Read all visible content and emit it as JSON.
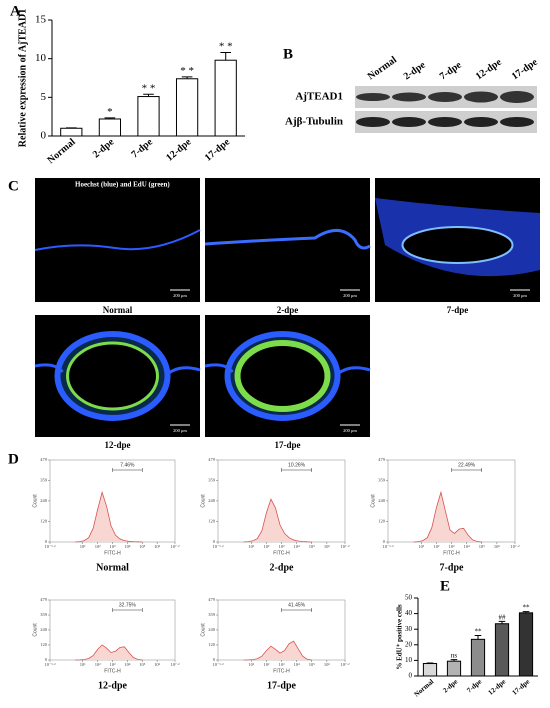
{
  "panel_labels": [
    "A",
    "B",
    "C",
    "D",
    "E"
  ],
  "blot": {
    "lanes": [
      "Normal",
      "2-dpe",
      "7-dpe",
      "12-dpe",
      "17-dpe"
    ],
    "rows": [
      "AjTEAD1",
      "Ajβ-Tubulin"
    ]
  },
  "micrographs": {
    "caption": "Hoechst (blue) and EdU (green)",
    "scale": "200 μm",
    "labels": [
      "Normal",
      "2-dpe",
      "7-dpe",
      "12-dpe",
      "17-dpe"
    ]
  },
  "chart_data": [
    {
      "type": "bar",
      "ylabel": "Relative expression of AjTEAD1",
      "categories": [
        "Normal",
        "2-dpe",
        "7-dpe",
        "12-dpe",
        "17-dpe"
      ],
      "values": [
        1,
        2.2,
        5.1,
        7.4,
        9.8
      ],
      "errors": [
        0.05,
        0.15,
        0.3,
        0.25,
        1.0
      ],
      "annotations": [
        null,
        "*",
        "* *",
        "* *",
        "* *"
      ],
      "color": "#ffffff",
      "ylim": [
        0,
        15
      ],
      "yticks": [
        0,
        5,
        10,
        15
      ]
    },
    {
      "type": "area",
      "title": "Normal",
      "xlabel": "FITC-H",
      "ylabel": "Count",
      "log_x": true,
      "x": [
        3.16,
        6.31,
        12.6,
        25.1,
        50.1,
        100,
        200,
        398,
        794,
        1585,
        3162,
        6310,
        12589,
        25119,
        50119,
        100000
      ],
      "values": [
        0,
        2,
        8,
        25,
        80,
        190,
        290,
        210,
        95,
        40,
        18,
        8,
        4,
        2,
        1,
        0
      ],
      "gate": [
        1000,
        100000
      ],
      "gate_label": "7.46%",
      "color": "#d9534f",
      "xlim": [
        0.0631,
        15848932
      ],
      "ylim": [
        0,
        479
      ],
      "xticks": [
        {
          "value": 0.0631,
          "label": "10⁻¹·²"
        },
        {
          "value": 10,
          "label": "10¹"
        },
        {
          "value": 100,
          "label": "10²"
        },
        {
          "value": 1000,
          "label": "10³"
        },
        {
          "value": 10000,
          "label": "10⁴"
        },
        {
          "value": 100000,
          "label": "10⁵"
        },
        {
          "value": 1000000,
          "label": "10⁶"
        },
        {
          "value": 15848932,
          "label": "10⁷·²"
        }
      ],
      "yticks": [
        0,
        120,
        240,
        359,
        479
      ]
    },
    {
      "type": "area",
      "title": "2-dpe",
      "xlabel": "FITC-H",
      "ylabel": "Count",
      "log_x": true,
      "x": [
        3.16,
        6.31,
        12.6,
        25.1,
        50.1,
        100,
        200,
        398,
        794,
        1585,
        3162,
        6310,
        12589,
        25119,
        50119,
        100000
      ],
      "values": [
        0,
        2,
        7,
        20,
        65,
        170,
        250,
        200,
        100,
        50,
        25,
        12,
        6,
        3,
        1,
        0
      ],
      "gate": [
        1000,
        100000
      ],
      "gate_label": "10.26%",
      "color": "#d9534f",
      "xlim": [
        0.0631,
        15848932
      ],
      "ylim": [
        0,
        479
      ],
      "xticks": [
        {
          "value": 0.0631,
          "label": "10⁻¹·²"
        },
        {
          "value": 10,
          "label": "10¹"
        },
        {
          "value": 100,
          "label": "10²"
        },
        {
          "value": 1000,
          "label": "10³"
        },
        {
          "value": 10000,
          "label": "10⁴"
        },
        {
          "value": 100000,
          "label": "10⁵"
        },
        {
          "value": 1000000,
          "label": "10⁶"
        },
        {
          "value": 15848932,
          "label": "10⁷·²"
        }
      ],
      "yticks": [
        0,
        120,
        240,
        359,
        479
      ]
    },
    {
      "type": "area",
      "title": "7-dpe",
      "xlabel": "FITC-H",
      "ylabel": "Count",
      "log_x": true,
      "x": [
        3.16,
        6.31,
        12.6,
        25.1,
        50.1,
        100,
        200,
        398,
        794,
        1585,
        3162,
        6310,
        12589,
        25119,
        50119,
        100000
      ],
      "values": [
        0,
        2,
        8,
        25,
        85,
        200,
        290,
        180,
        70,
        50,
        75,
        80,
        40,
        12,
        3,
        0
      ],
      "gate": [
        1000,
        100000
      ],
      "gate_label": "22.49%",
      "color": "#d9534f",
      "xlim": [
        0.0631,
        15848932
      ],
      "ylim": [
        0,
        479
      ],
      "xticks": [
        {
          "value": 0.0631,
          "label": "10⁻¹·²"
        },
        {
          "value": 10,
          "label": "10¹"
        },
        {
          "value": 100,
          "label": "10²"
        },
        {
          "value": 1000,
          "label": "10³"
        },
        {
          "value": 10000,
          "label": "10⁴"
        },
        {
          "value": 100000,
          "label": "10⁵"
        },
        {
          "value": 1000000,
          "label": "10⁶"
        },
        {
          "value": 15848932,
          "label": "10⁷·²"
        }
      ],
      "yticks": [
        0,
        120,
        240,
        359,
        479
      ]
    },
    {
      "type": "area",
      "title": "12-dpe",
      "xlabel": "FITC-H",
      "ylabel": "Count",
      "log_x": true,
      "x": [
        3.16,
        6.31,
        12.6,
        25.1,
        50.1,
        100,
        200,
        398,
        794,
        1585,
        3162,
        6310,
        12589,
        25119,
        50119,
        100000
      ],
      "values": [
        0,
        1,
        4,
        12,
        35,
        85,
        120,
        95,
        60,
        70,
        100,
        105,
        60,
        20,
        5,
        0
      ],
      "gate": [
        1000,
        100000
      ],
      "gate_label": "32.75%",
      "color": "#d9534f",
      "xlim": [
        0.0631,
        15848932
      ],
      "ylim": [
        0,
        479
      ],
      "xticks": [
        {
          "value": 0.0631,
          "label": "10⁻¹·²"
        },
        {
          "value": 10,
          "label": "10¹"
        },
        {
          "value": 100,
          "label": "10²"
        },
        {
          "value": 1000,
          "label": "10³"
        },
        {
          "value": 10000,
          "label": "10⁴"
        },
        {
          "value": 100000,
          "label": "10⁵"
        },
        {
          "value": 1000000,
          "label": "10⁶"
        },
        {
          "value": 15848932,
          "label": "10⁷·²"
        }
      ],
      "yticks": [
        0,
        120,
        240,
        359,
        479
      ]
    },
    {
      "type": "area",
      "title": "17-dpe",
      "xlabel": "FITC-H",
      "ylabel": "Count",
      "log_x": true,
      "x": [
        3.16,
        6.31,
        12.6,
        25.1,
        50.1,
        100,
        200,
        398,
        794,
        1585,
        3162,
        6310,
        12589,
        25119,
        50119,
        100000
      ],
      "values": [
        0,
        1,
        3,
        10,
        30,
        75,
        110,
        85,
        55,
        75,
        130,
        150,
        90,
        30,
        6,
        0
      ],
      "gate": [
        1000,
        100000
      ],
      "gate_label": "41.45%",
      "color": "#d9534f",
      "xlim": [
        0.0631,
        15848932
      ],
      "ylim": [
        0,
        479
      ],
      "xticks": [
        {
          "value": 0.0631,
          "label": "10⁻¹·²"
        },
        {
          "value": 10,
          "label": "10¹"
        },
        {
          "value": 100,
          "label": "10²"
        },
        {
          "value": 1000,
          "label": "10³"
        },
        {
          "value": 10000,
          "label": "10⁴"
        },
        {
          "value": 100000,
          "label": "10⁵"
        },
        {
          "value": 1000000,
          "label": "10⁶"
        },
        {
          "value": 15848932,
          "label": "10⁷·²"
        }
      ],
      "yticks": [
        0,
        120,
        240,
        359,
        479
      ]
    },
    {
      "type": "bar",
      "ylabel": "% EdU⁺ positive cells",
      "categories": [
        "Normal",
        "2-dpe",
        "7-dpe",
        "12-dpe",
        "17-dpe"
      ],
      "values": [
        8,
        9.5,
        23.5,
        33.5,
        40.5
      ],
      "errors": [
        0.3,
        1.0,
        2.5,
        1.5,
        0.8
      ],
      "annotations": [
        null,
        "ns",
        "**",
        "##",
        "**"
      ],
      "colors": [
        "#d9d9d9",
        "#b3b3b3",
        "#8c8c8c",
        "#595959",
        "#333333"
      ],
      "ylim": [
        0,
        50
      ],
      "yticks": [
        0,
        10,
        20,
        30,
        40,
        50
      ]
    }
  ]
}
